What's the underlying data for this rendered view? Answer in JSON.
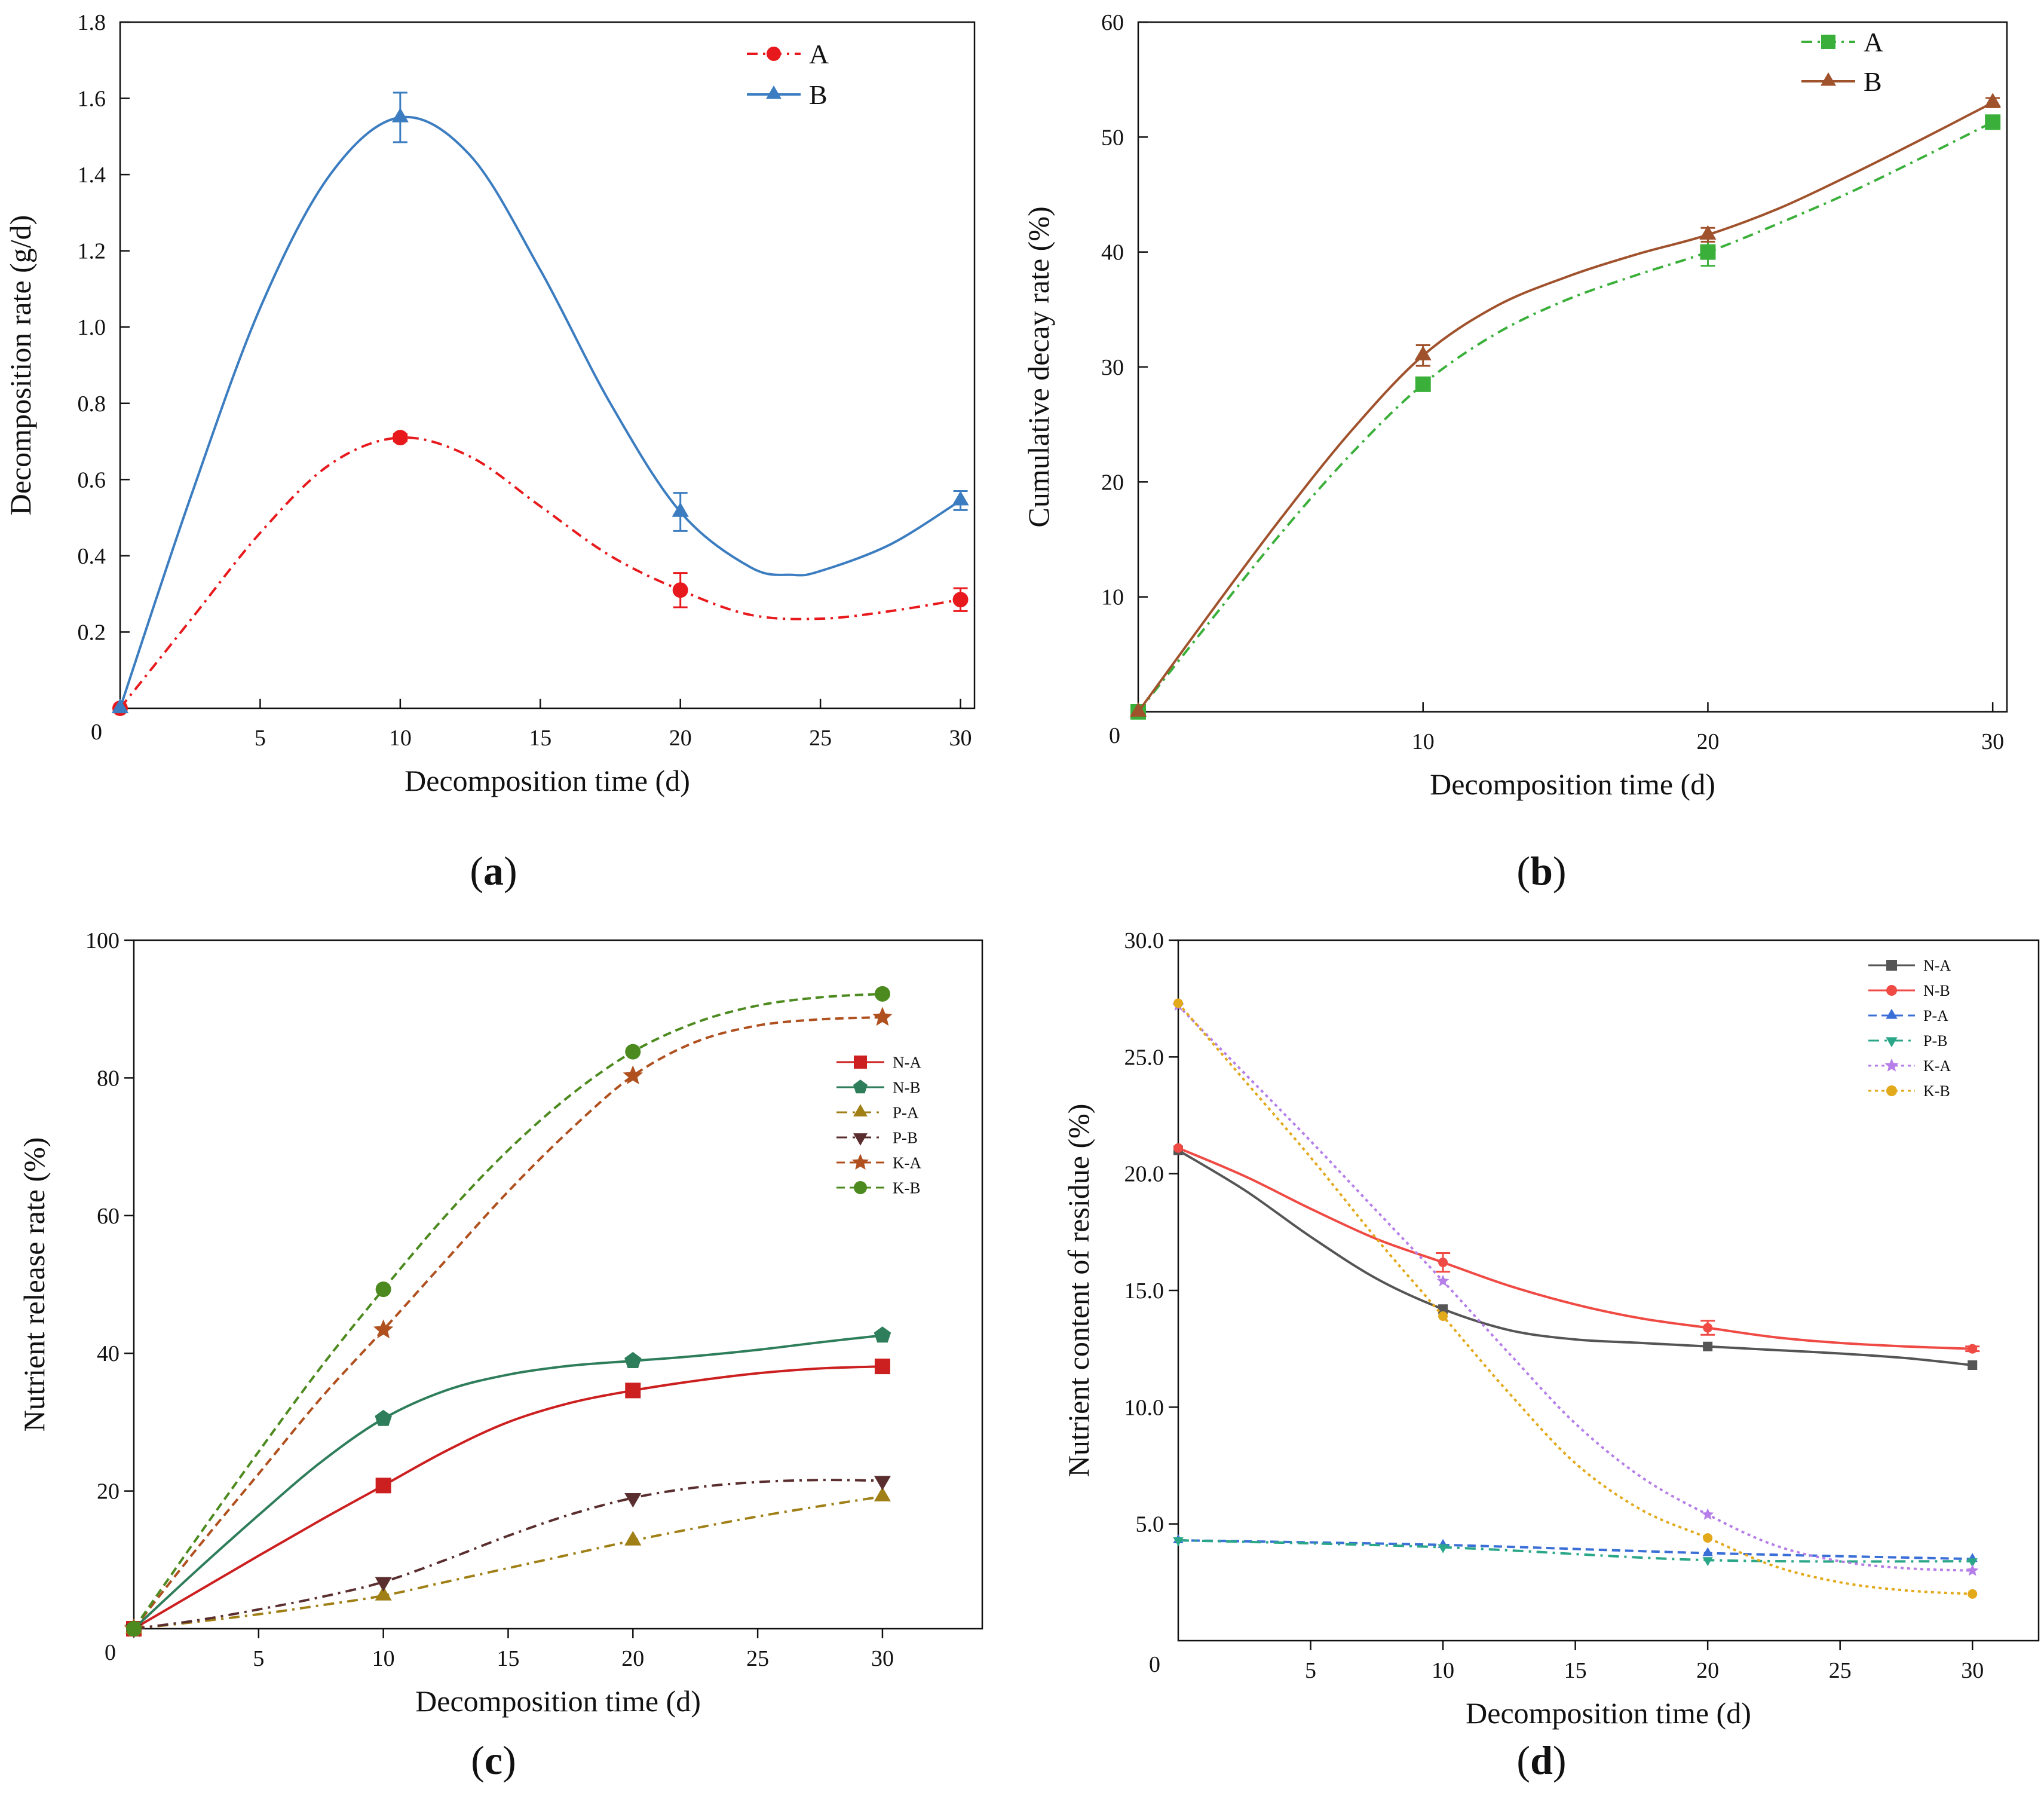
{
  "chart_data": [
    {
      "panel": "a",
      "caption": "a",
      "type": "line",
      "xlabel": "Decomposition time (d)",
      "ylabel": "Decomposition rate (g/d)",
      "xlim": [
        0,
        30.5
      ],
      "ylim": [
        0,
        1.8
      ],
      "xticks": [
        5,
        10,
        15,
        20,
        25,
        30
      ],
      "xtick_labels": [
        "5",
        "10",
        "15",
        "20",
        "25",
        "30"
      ],
      "yticks": [
        0.2,
        0.4,
        0.6,
        0.8,
        1.0,
        1.2,
        1.4,
        1.6,
        1.8
      ],
      "ytick_labels": [
        "0.2",
        "0.4",
        "0.6",
        "0.8",
        "1.0",
        "1.2",
        "1.4",
        "1.6",
        "1.8"
      ],
      "origin_label": "0",
      "legend_position": "top-right",
      "series": [
        {
          "name": "A",
          "color": "#e8191c",
          "marker": "circle",
          "dash": "dashdot",
          "x": [
            0,
            10,
            20,
            30
          ],
          "y": [
            0,
            0.71,
            0.31,
            0.285
          ],
          "err": [
            0,
            0.01,
            0.045,
            0.03
          ],
          "curve_x": [
            0,
            2.5,
            5,
            7.5,
            10,
            12.5,
            15,
            17.5,
            20,
            22.5,
            25,
            27.5,
            30
          ],
          "curve_y": [
            0,
            0.23,
            0.46,
            0.64,
            0.71,
            0.66,
            0.53,
            0.4,
            0.31,
            0.245,
            0.235,
            0.255,
            0.285
          ]
        },
        {
          "name": "B",
          "color": "#3b7dc0",
          "marker": "triangle",
          "dash": "solid",
          "x": [
            0,
            10,
            20,
            30
          ],
          "y": [
            0,
            1.55,
            0.515,
            0.545
          ],
          "err": [
            0,
            0.065,
            0.05,
            0.025
          ],
          "curve_x": [
            0,
            2.5,
            5,
            7.5,
            10,
            12.5,
            15,
            17.5,
            20,
            22.5,
            24,
            25,
            27.5,
            30
          ],
          "curve_y": [
            0,
            0.55,
            1.05,
            1.4,
            1.55,
            1.45,
            1.15,
            0.8,
            0.515,
            0.37,
            0.35,
            0.36,
            0.43,
            0.545
          ]
        }
      ]
    },
    {
      "panel": "b",
      "caption": "b",
      "type": "line",
      "xlabel": "Decomposition time (d)",
      "ylabel": "Cumulative decay rate (%)",
      "xlim": [
        0,
        30.5
      ],
      "ylim": [
        0,
        60
      ],
      "xticks": [
        10,
        20,
        30
      ],
      "xtick_labels": [
        "10",
        "20",
        "30"
      ],
      "yticks": [
        10,
        20,
        30,
        40,
        50,
        60
      ],
      "ytick_labels": [
        "10",
        "20",
        "30",
        "40",
        "50",
        "60"
      ],
      "origin_label": "0",
      "origin_label_color": "#2e9a2e",
      "legend_position": "top-right",
      "series": [
        {
          "name": "A",
          "color": "#3ab03a",
          "marker": "square",
          "dash": "dashdot",
          "x": [
            0,
            10,
            20,
            30
          ],
          "y": [
            0,
            28.5,
            40,
            51.3
          ],
          "err": [
            0,
            0.5,
            1.2,
            0.4
          ],
          "curve_x": [
            0,
            2.5,
            5,
            7.5,
            10,
            12.5,
            15,
            17.5,
            20,
            22.5,
            25,
            27.5,
            30
          ],
          "curve_y": [
            0,
            7.8,
            15.5,
            22.5,
            28.5,
            32.8,
            35.8,
            38.0,
            40.0,
            42.5,
            45.2,
            48.2,
            51.3
          ]
        },
        {
          "name": "B",
          "color": "#a0522d",
          "marker": "triangle",
          "dash": "solid",
          "x": [
            0,
            10,
            20,
            30
          ],
          "y": [
            0,
            31,
            41.5,
            53
          ],
          "err": [
            0,
            0.9,
            0.6,
            0.4
          ],
          "curve_x": [
            0,
            2.5,
            5,
            7.5,
            10,
            12.5,
            15,
            17.5,
            20,
            22.5,
            25,
            27.5,
            30
          ],
          "curve_y": [
            0,
            8.5,
            16.8,
            24.5,
            31.0,
            35.2,
            37.8,
            39.8,
            41.5,
            43.8,
            46.7,
            49.8,
            53.0
          ]
        }
      ]
    },
    {
      "panel": "c",
      "caption": "c",
      "type": "line",
      "xlabel": "Decomposition time (d)",
      "ylabel": "Nutrient release rate (%)",
      "xlim": [
        0,
        34
      ],
      "ylim": [
        0,
        100
      ],
      "xticks": [
        5,
        10,
        15,
        20,
        25,
        30
      ],
      "xtick_labels": [
        "5",
        "10",
        "15",
        "20",
        "25",
        "30"
      ],
      "yticks": [
        20,
        40,
        60,
        80,
        100
      ],
      "ytick_labels": [
        "20",
        "40",
        "60",
        "80",
        "100"
      ],
      "origin_label": "0",
      "legend_position": "right",
      "series": [
        {
          "name": "N-A",
          "color": "#cc1f1f",
          "marker": "square",
          "dash": "solid",
          "x": [
            0,
            10,
            20,
            30
          ],
          "y": [
            0,
            20.8,
            34.6,
            38.1
          ],
          "curve_x": [
            0,
            2.5,
            5,
            7.5,
            10,
            12.5,
            15,
            17.5,
            20,
            22.5,
            25,
            27.5,
            30
          ],
          "curve_y": [
            0,
            5.3,
            10.6,
            15.8,
            20.8,
            25.8,
            30,
            32.8,
            34.6,
            36.0,
            37.1,
            37.8,
            38.1
          ]
        },
        {
          "name": "N-B",
          "color": "#2e7d5b",
          "marker": "pentagon",
          "dash": "solid",
          "x": [
            0,
            10,
            20,
            30
          ],
          "y": [
            0,
            30.5,
            38.9,
            42.6
          ],
          "curve_x": [
            0,
            2.5,
            5,
            7.5,
            10,
            12.5,
            15,
            17.5,
            20,
            22.5,
            25,
            27.5,
            30
          ],
          "curve_y": [
            0,
            8.4,
            16.5,
            24.2,
            30.5,
            34.6,
            36.9,
            38.2,
            38.9,
            39.6,
            40.5,
            41.6,
            42.6
          ]
        },
        {
          "name": "P-A",
          "color": "#a08016",
          "marker": "triangle",
          "dash": "dashdot",
          "x": [
            0,
            10,
            20,
            30
          ],
          "y": [
            0,
            4.8,
            12.8,
            19.2
          ],
          "curve_x": [
            0,
            2.5,
            5,
            7.5,
            10,
            12.5,
            15,
            17.5,
            20,
            22.5,
            25,
            27.5,
            30
          ],
          "curve_y": [
            0,
            1.0,
            2.1,
            3.4,
            4.8,
            6.8,
            8.8,
            10.8,
            12.8,
            14.6,
            16.3,
            17.8,
            19.2
          ]
        },
        {
          "name": "P-B",
          "color": "#5a2e2e",
          "marker": "triangle-down",
          "dash": "dashdot",
          "x": [
            0,
            10,
            20,
            30
          ],
          "y": [
            0,
            6.8,
            19.0,
            21.5
          ],
          "curve_x": [
            0,
            2.5,
            5,
            7.5,
            10,
            12.5,
            15,
            17.5,
            20,
            22.5,
            25,
            27.5,
            30
          ],
          "curve_y": [
            0,
            1.2,
            2.8,
            4.6,
            6.8,
            10.0,
            13.5,
            16.6,
            19.0,
            20.5,
            21.3,
            21.6,
            21.5
          ]
        },
        {
          "name": "K-A",
          "color": "#b0501f",
          "marker": "star",
          "dash": "dashed",
          "x": [
            0,
            10,
            20,
            30
          ],
          "y": [
            0,
            43.4,
            80.3,
            88.8
          ],
          "curve_x": [
            0,
            2.5,
            5,
            7.5,
            10,
            12.5,
            15,
            17.5,
            20,
            22.5,
            25,
            27.5,
            30
          ],
          "curve_y": [
            0,
            11.5,
            22.5,
            33.5,
            43.4,
            53.5,
            63.5,
            72.5,
            80.3,
            85.2,
            87.6,
            88.5,
            88.8
          ]
        },
        {
          "name": "K-B",
          "color": "#4c8a1f",
          "marker": "circle",
          "dash": "dashed",
          "x": [
            0,
            10,
            20,
            30
          ],
          "y": [
            0,
            49.3,
            83.8,
            92.2
          ],
          "curve_x": [
            0,
            2.5,
            5,
            7.5,
            10,
            12.5,
            15,
            17.5,
            20,
            22.5,
            25,
            27.5,
            30
          ],
          "curve_y": [
            0,
            13.0,
            25.7,
            38.0,
            49.3,
            60.0,
            69.5,
            77.5,
            83.8,
            88.0,
            90.5,
            91.7,
            92.2
          ]
        }
      ]
    },
    {
      "panel": "d",
      "caption": "d",
      "type": "line",
      "xlabel": "Decomposition time (d)",
      "ylabel": "Nutrient content of residue (%)",
      "xlim": [
        0,
        32.5
      ],
      "ylim": [
        0,
        30
      ],
      "xticks": [
        5,
        10,
        15,
        20,
        25,
        30
      ],
      "xtick_labels": [
        "5",
        "10",
        "15",
        "20",
        "25",
        "30"
      ],
      "yticks": [
        5,
        10,
        15,
        20,
        25,
        30
      ],
      "ytick_labels": [
        "5.0",
        "10.0",
        "15.0",
        "20.0",
        "25.0",
        "30.0"
      ],
      "origin_label": "0",
      "legend_position": "top-right",
      "series": [
        {
          "name": "N-A",
          "color": "#555555",
          "marker": "square",
          "dash": "solid",
          "x": [
            0,
            10,
            20,
            30
          ],
          "y": [
            21.0,
            14.2,
            12.6,
            11.8
          ],
          "curve_x": [
            0,
            2.5,
            5,
            7.5,
            10,
            12.5,
            15,
            17.5,
            20,
            22.5,
            25,
            27.5,
            30
          ],
          "curve_y": [
            21.0,
            19.3,
            17.3,
            15.5,
            14.2,
            13.3,
            12.9,
            12.75,
            12.6,
            12.45,
            12.3,
            12.1,
            11.8
          ]
        },
        {
          "name": "N-B",
          "color": "#ef4a44",
          "marker": "circle",
          "dash": "solid",
          "x": [
            0,
            10,
            20,
            30
          ],
          "y": [
            21.1,
            16.2,
            13.4,
            12.5
          ],
          "err": [
            0,
            0.4,
            0.3,
            0.1
          ],
          "curve_x": [
            0,
            2.5,
            5,
            7.5,
            10,
            12.5,
            15,
            17.5,
            20,
            22.5,
            25,
            27.5,
            30
          ],
          "curve_y": [
            21.1,
            19.9,
            18.5,
            17.2,
            16.2,
            15.2,
            14.4,
            13.8,
            13.4,
            13.0,
            12.75,
            12.6,
            12.5
          ]
        },
        {
          "name": "P-A",
          "color": "#3a6fd8",
          "marker": "triangle",
          "dash": "dashed",
          "x": [
            0,
            10,
            20,
            30
          ],
          "y": [
            4.3,
            4.1,
            3.75,
            3.5
          ],
          "curve_x": [
            0,
            10,
            20,
            30
          ],
          "curve_y": [
            4.3,
            4.1,
            3.75,
            3.5
          ]
        },
        {
          "name": "P-B",
          "color": "#2aa788",
          "marker": "triangle-down",
          "dash": "dashdot",
          "x": [
            0,
            10,
            20,
            30
          ],
          "y": [
            4.3,
            4.0,
            3.45,
            3.4
          ],
          "curve_x": [
            0,
            10,
            20,
            30
          ],
          "curve_y": [
            4.3,
            4.0,
            3.45,
            3.4
          ]
        },
        {
          "name": "K-A",
          "color": "#b57ee8",
          "marker": "star",
          "dash": "dotted",
          "x": [
            0,
            10,
            20,
            30
          ],
          "y": [
            27.2,
            15.4,
            5.4,
            3.0
          ],
          "curve_x": [
            0,
            2.5,
            5,
            7.5,
            10,
            12.5,
            15,
            17.5,
            20,
            22.5,
            25,
            27.5,
            30
          ],
          "curve_y": [
            27.2,
            24.3,
            21.4,
            18.4,
            15.4,
            12.3,
            9.3,
            7.0,
            5.4,
            4.1,
            3.4,
            3.1,
            3.0
          ]
        },
        {
          "name": "K-B",
          "color": "#e2a91a",
          "marker": "circle",
          "dash": "dotted",
          "x": [
            0,
            10,
            20,
            30
          ],
          "y": [
            27.3,
            13.9,
            4.4,
            2.0
          ],
          "curve_x": [
            0,
            2.5,
            5,
            7.5,
            10,
            12.5,
            15,
            17.5,
            20,
            22.5,
            25,
            27.5,
            30
          ],
          "curve_y": [
            27.3,
            24.0,
            20.7,
            17.2,
            13.9,
            10.6,
            7.6,
            5.6,
            4.4,
            3.2,
            2.5,
            2.15,
            2.0
          ]
        }
      ]
    }
  ]
}
